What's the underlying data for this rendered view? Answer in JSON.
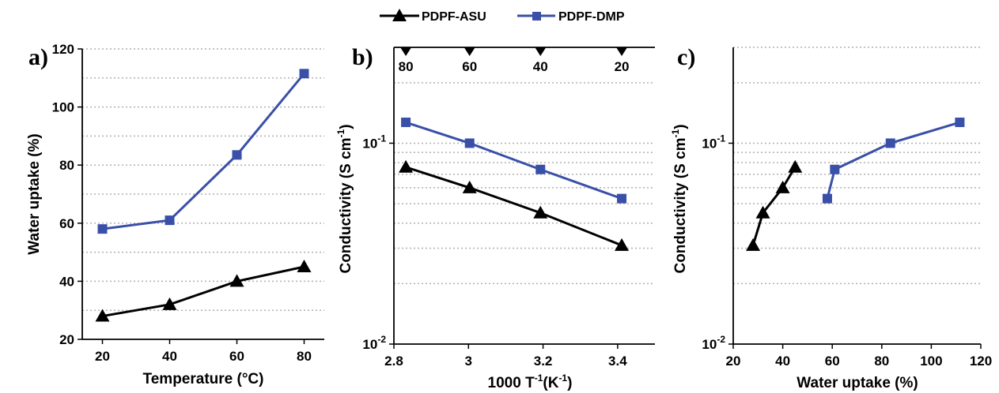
{
  "colors": {
    "asu": "#000000",
    "dmp": "#3a4fa8",
    "grid": "#b0b0b0"
  },
  "legend": {
    "items": [
      {
        "label": "PDPF-ASU",
        "marker": "triangle",
        "color": "#000000"
      },
      {
        "label": "PDPF-DMP",
        "marker": "square",
        "color": "#3a4fa8"
      }
    ]
  },
  "chart_data": [
    {
      "id": "a",
      "panel_label": "a)",
      "type": "line",
      "xlabel": "Temperature (°C)",
      "ylabel": "Water uptake (%)",
      "xlim": [
        14,
        86
      ],
      "ylim": [
        20,
        120
      ],
      "xticks": [
        20,
        40,
        60,
        80
      ],
      "yticks": [
        20,
        40,
        60,
        80,
        100,
        120
      ],
      "grid": "horizontal dotted",
      "series": [
        {
          "name": "PDPF-ASU",
          "marker": "triangle",
          "x": [
            20,
            40,
            60,
            80
          ],
          "y": [
            28,
            32,
            40,
            45
          ]
        },
        {
          "name": "PDPF-DMP",
          "marker": "square",
          "x": [
            20,
            40,
            60,
            80
          ],
          "y": [
            58,
            61,
            83.5,
            111.5
          ]
        }
      ]
    },
    {
      "id": "b",
      "panel_label": "b)",
      "type": "line",
      "xlabel_main": "1000 T",
      "xlabel_sup1": "-1",
      "xlabel_mid": "(K",
      "xlabel_sup2": "-1",
      "xlabel_end": ")",
      "ylabel_main": "Conductivity (S cm",
      "ylabel_sup": "-1",
      "ylabel_end": ")",
      "xlim": [
        2.8,
        3.5
      ],
      "ylim": [
        0.01,
        0.3
      ],
      "yscale": "log",
      "xticks": [
        2.8,
        3.0,
        3.2,
        3.4
      ],
      "xtick_labels": [
        "2.8",
        "3",
        "3.2",
        "3.4"
      ],
      "ytick_labels": [
        {
          "base": "10",
          "exp": "-1",
          "value": 0.1
        },
        {
          "base": "10",
          "exp": "-2",
          "value": 0.01
        }
      ],
      "top_axis": {
        "labels": [
          "80",
          "60",
          "40",
          "20"
        ],
        "x_positions": [
          2.832,
          3.003,
          3.193,
          3.411
        ]
      },
      "grid": "horizontal dotted (log minor)",
      "series": [
        {
          "name": "PDPF-ASU",
          "marker": "triangle",
          "x": [
            2.832,
            3.003,
            3.193,
            3.411
          ],
          "y": [
            0.076,
            0.06,
            0.045,
            0.031
          ]
        },
        {
          "name": "PDPF-DMP",
          "marker": "square",
          "x": [
            2.832,
            3.003,
            3.193,
            3.411
          ],
          "y": [
            0.127,
            0.1,
            0.074,
            0.053
          ]
        }
      ]
    },
    {
      "id": "c",
      "panel_label": "c)",
      "type": "line",
      "xlabel": "Water uptake (%)",
      "ylabel_main": "Conductivity (S cm",
      "ylabel_sup": "-1",
      "ylabel_end": ")",
      "xlim": [
        20,
        120
      ],
      "ylim": [
        0.01,
        0.3
      ],
      "yscale": "log",
      "xticks": [
        20,
        40,
        60,
        80,
        100,
        120
      ],
      "ytick_labels": [
        {
          "base": "10",
          "exp": "-1",
          "value": 0.1
        },
        {
          "base": "10",
          "exp": "-2",
          "value": 0.01
        }
      ],
      "grid": "horizontal dotted (log minor)",
      "series": [
        {
          "name": "PDPF-ASU",
          "marker": "triangle",
          "x": [
            28,
            32,
            40,
            45
          ],
          "y": [
            0.031,
            0.045,
            0.06,
            0.076
          ]
        },
        {
          "name": "PDPF-DMP",
          "marker": "square",
          "x": [
            58,
            61,
            83.5,
            111.5
          ],
          "y": [
            0.053,
            0.074,
            0.1,
            0.127
          ]
        }
      ]
    }
  ]
}
